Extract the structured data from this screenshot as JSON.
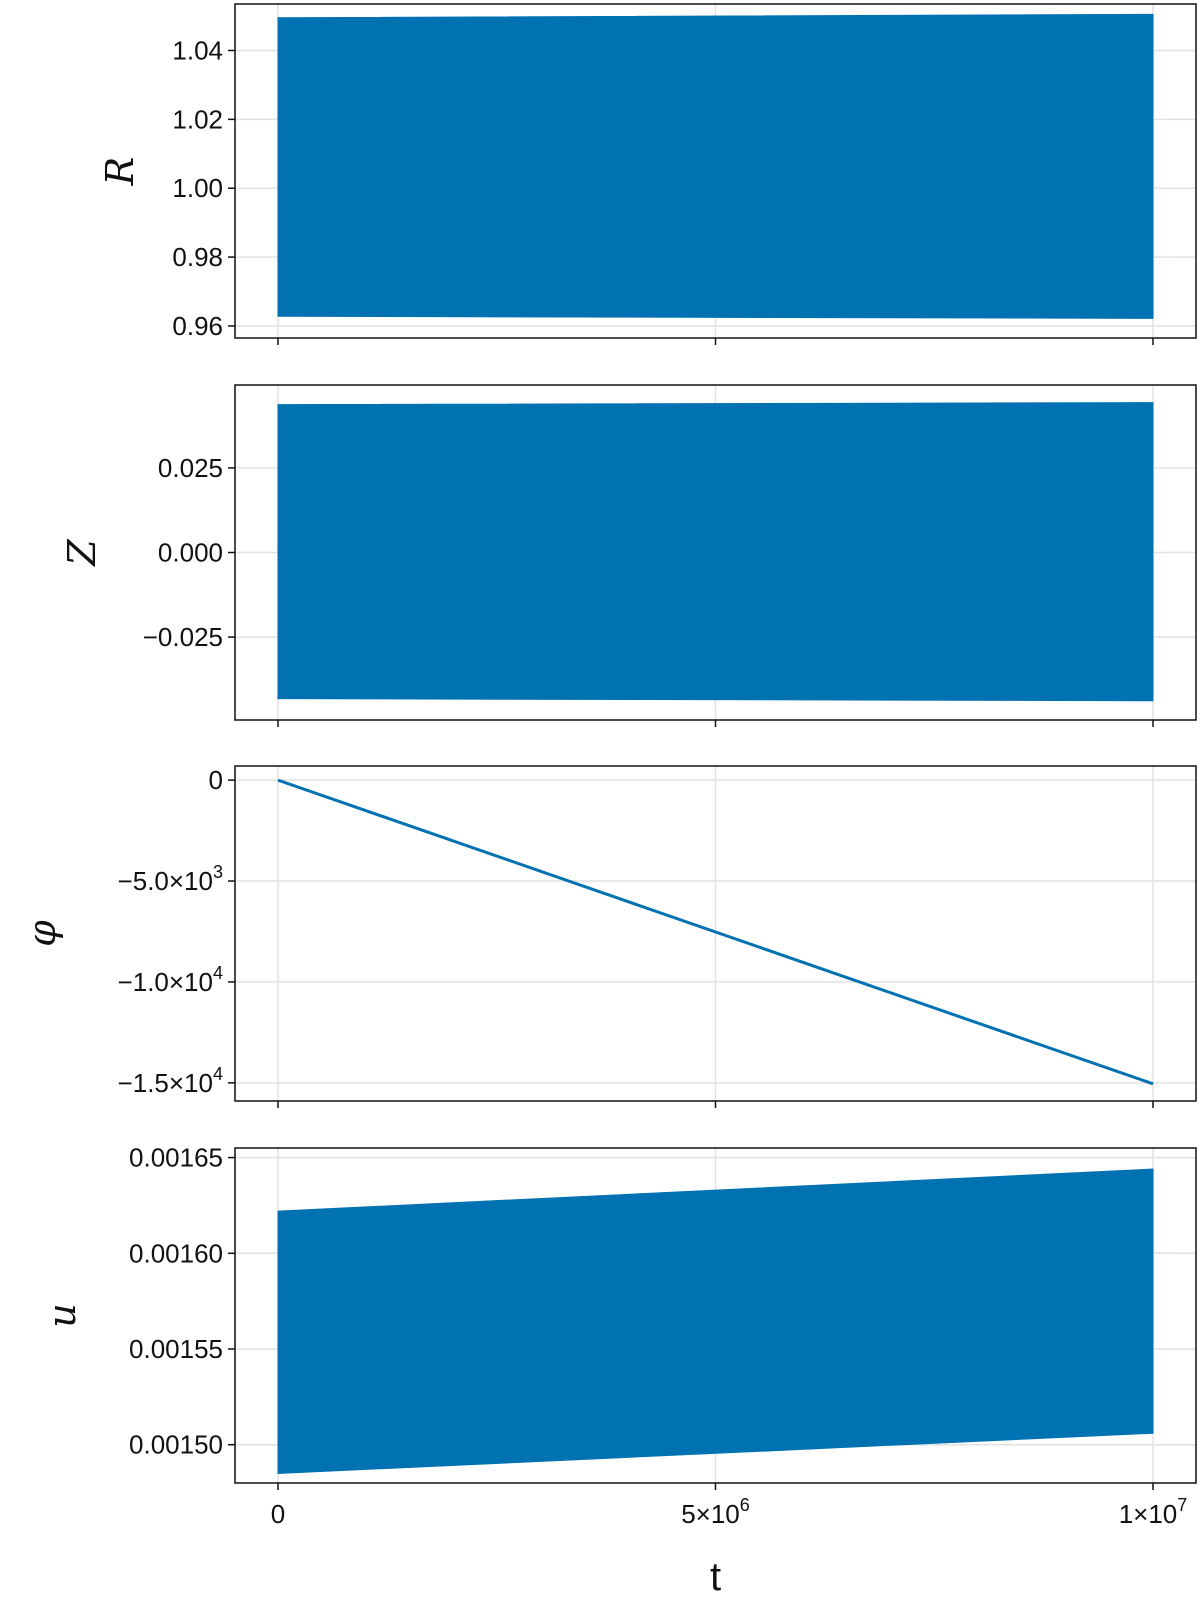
{
  "chart_data": [
    {
      "type": "area",
      "ylabel": "R",
      "xlim": [
        0,
        10000000
      ],
      "ylim": [
        0.9565,
        1.0535
      ],
      "xticks": [
        0,
        5000000,
        10000000
      ],
      "yticks": [
        0.96,
        0.98,
        1.0,
        1.02,
        1.04
      ],
      "ytick_labels": [
        "0.96",
        "0.98",
        "1.00",
        "1.02",
        "1.04"
      ],
      "x": [
        0,
        10000000
      ],
      "upper": [
        1.0495,
        1.0505
      ],
      "lower": [
        0.9628,
        0.9622
      ],
      "color": "#0072b2"
    },
    {
      "type": "area",
      "ylabel": "Z",
      "xlim": [
        0,
        10000000
      ],
      "ylim": [
        -0.0495,
        0.0495
      ],
      "xticks": [
        0,
        5000000,
        10000000
      ],
      "yticks": [
        -0.025,
        0.0,
        0.025
      ],
      "ytick_labels": [
        "−0.025",
        "0.000",
        "0.025"
      ],
      "x": [
        0,
        10000000
      ],
      "upper": [
        0.0437,
        0.0443
      ],
      "lower": [
        -0.0432,
        -0.0438
      ],
      "color": "#0072b2"
    },
    {
      "type": "line",
      "ylabel": "φ",
      "xlim": [
        0,
        10000000
      ],
      "ylim": [
        -15900,
        700
      ],
      "xticks": [
        0,
        5000000,
        10000000
      ],
      "yticks": [
        0,
        -5000,
        -10000,
        -15000
      ],
      "ytick_labels": [
        {
          "m": "0",
          "e": ""
        },
        {
          "m": "−5.0×10",
          "e": "3"
        },
        {
          "m": "−1.0×10",
          "e": "4"
        },
        {
          "m": "−1.5×10",
          "e": "4"
        }
      ],
      "x": [
        0,
        10000000
      ],
      "y": [
        0,
        -15050
      ],
      "color": "#0072b2"
    },
    {
      "type": "area",
      "ylabel": "u",
      "xlabel": "t",
      "xlim": [
        0,
        10000000
      ],
      "ylim": [
        0.00148,
        0.001655
      ],
      "xticks": [
        0,
        5000000,
        10000000
      ],
      "xtick_labels": [
        {
          "m": "0",
          "e": ""
        },
        {
          "m": "5×10",
          "e": "6"
        },
        {
          "m": "1×10",
          "e": "7"
        }
      ],
      "yticks": [
        0.0015,
        0.00155,
        0.0016,
        0.00165
      ],
      "ytick_labels": [
        "0.00150",
        "0.00155",
        "0.00160",
        "0.00165"
      ],
      "x": [
        0,
        10000000
      ],
      "upper": [
        0.001622,
        0.001644
      ],
      "lower": [
        0.001485,
        0.001506
      ],
      "color": "#0072b2"
    }
  ]
}
